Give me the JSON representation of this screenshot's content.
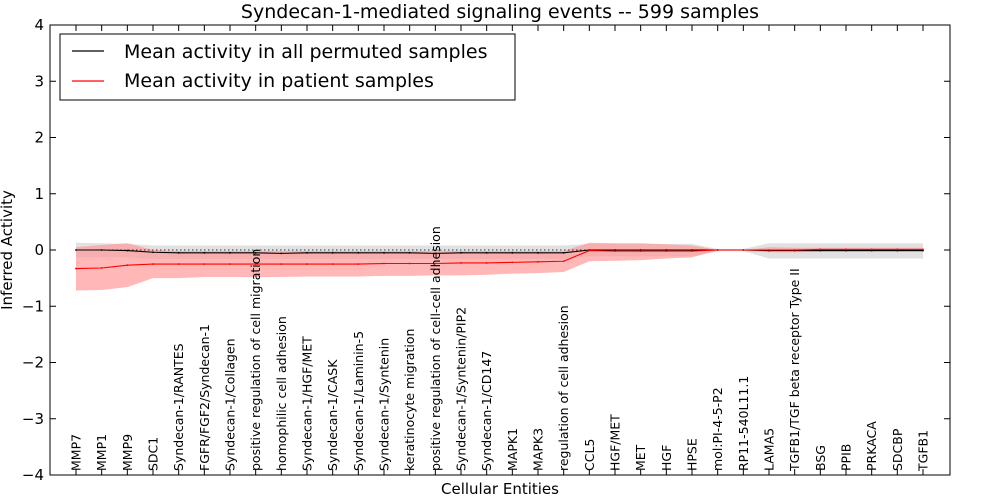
{
  "chart_data": {
    "type": "line",
    "title": "Syndecan-1-mediated signaling events -- 599 samples",
    "xlabel": "Cellular Entities",
    "ylabel": "Inferred Activity",
    "ylim": [
      -4,
      4
    ],
    "yticks": [
      -4,
      -3,
      -2,
      -1,
      0,
      1,
      2,
      3,
      4
    ],
    "ytick_labels": [
      "−4",
      "−3",
      "−2",
      "−1",
      "0",
      "1",
      "2",
      "3",
      "4"
    ],
    "legend_position": "top-left",
    "categories": [
      "MMP7",
      "MMP1",
      "MMP9",
      "SDC1",
      "Syndecan-1/RANTES",
      "FGFR/FGF2/Syndecan-1",
      "Syndecan-1/Collagen",
      "positive regulation of cell migration",
      "homophilic cell adhesion",
      "Syndecan-1/HGF/MET",
      "Syndecan-1/CASK",
      "Syndecan-1/Laminin-5",
      "Syndecan-1/Syntenin",
      "keratinocyte migration",
      "positive regulation of cell-cell adhesion",
      "Syndecan-1/Syntenin/PIP2",
      "Syndecan-1/CD147",
      "MAPK1",
      "MAPK3",
      "regulation of cell adhesion",
      "CCL5",
      "HGF/MET",
      "MET",
      "HGF",
      "HPSE",
      "mol:PI-4-5-P2",
      "RP11-540L11.1",
      "LAMA5",
      "TGFB1/TGF beta receptor Type II",
      "BSG",
      "PPIB",
      "PRKACA",
      "SDCBP",
      "TGFB1"
    ],
    "series": [
      {
        "name": "Mean activity in all permuted samples",
        "color": "#000000",
        "values": [
          0.0,
          0.0,
          -0.01,
          -0.04,
          -0.05,
          -0.05,
          -0.05,
          -0.05,
          -0.06,
          -0.05,
          -0.05,
          -0.05,
          -0.05,
          -0.05,
          -0.06,
          -0.05,
          -0.05,
          -0.05,
          -0.05,
          -0.05,
          0.0,
          0.0,
          0.0,
          0.0,
          0.0,
          0.0,
          0.0,
          -0.01,
          -0.01,
          -0.01,
          -0.01,
          -0.01,
          -0.01,
          -0.01
        ],
        "band_upper": [
          0.13,
          0.12,
          0.11,
          0.08,
          0.08,
          0.08,
          0.08,
          0.08,
          0.08,
          0.08,
          0.08,
          0.08,
          0.08,
          0.08,
          0.08,
          0.08,
          0.08,
          0.08,
          0.08,
          0.08,
          0.11,
          0.11,
          0.11,
          0.11,
          0.11,
          0.02,
          0.02,
          0.12,
          0.12,
          0.12,
          0.12,
          0.12,
          0.12,
          0.12
        ],
        "band_lower": [
          -0.13,
          -0.13,
          -0.13,
          -0.16,
          -0.16,
          -0.16,
          -0.16,
          -0.16,
          -0.16,
          -0.16,
          -0.16,
          -0.16,
          -0.16,
          -0.16,
          -0.16,
          -0.16,
          -0.16,
          -0.16,
          -0.16,
          -0.16,
          -0.11,
          -0.11,
          -0.11,
          -0.11,
          -0.11,
          -0.02,
          -0.02,
          -0.15,
          -0.15,
          -0.15,
          -0.15,
          -0.15,
          -0.15,
          -0.15
        ],
        "band_color": "#c8c8c8"
      },
      {
        "name": "Mean activity in patient samples",
        "color": "#ff0000",
        "values": [
          -0.33,
          -0.32,
          -0.27,
          -0.25,
          -0.25,
          -0.25,
          -0.25,
          -0.25,
          -0.25,
          -0.25,
          -0.25,
          -0.25,
          -0.24,
          -0.24,
          -0.24,
          -0.23,
          -0.23,
          -0.22,
          -0.21,
          -0.2,
          -0.01,
          -0.02,
          -0.02,
          -0.02,
          -0.02,
          0.0,
          0.0,
          0.0,
          0.0,
          0.01,
          0.01,
          0.01,
          0.01,
          0.01
        ],
        "band_upper": [
          0.05,
          0.09,
          0.12,
          0.0,
          -0.02,
          -0.02,
          -0.02,
          -0.02,
          -0.02,
          -0.02,
          -0.02,
          -0.02,
          -0.02,
          -0.02,
          -0.02,
          -0.02,
          -0.02,
          -0.02,
          -0.02,
          -0.02,
          0.13,
          0.12,
          0.12,
          0.1,
          0.08,
          0.0,
          0.0,
          0.05,
          0.04,
          0.04,
          0.04,
          0.04,
          0.04,
          0.04
        ],
        "band_lower": [
          -0.72,
          -0.71,
          -0.66,
          -0.5,
          -0.5,
          -0.48,
          -0.48,
          -0.48,
          -0.48,
          -0.47,
          -0.47,
          -0.47,
          -0.46,
          -0.46,
          -0.45,
          -0.45,
          -0.44,
          -0.42,
          -0.41,
          -0.39,
          -0.2,
          -0.19,
          -0.18,
          -0.15,
          -0.13,
          -0.01,
          -0.01,
          -0.04,
          -0.04,
          -0.03,
          -0.03,
          -0.03,
          -0.03,
          -0.03
        ],
        "band_color": "#ff9999"
      }
    ]
  }
}
